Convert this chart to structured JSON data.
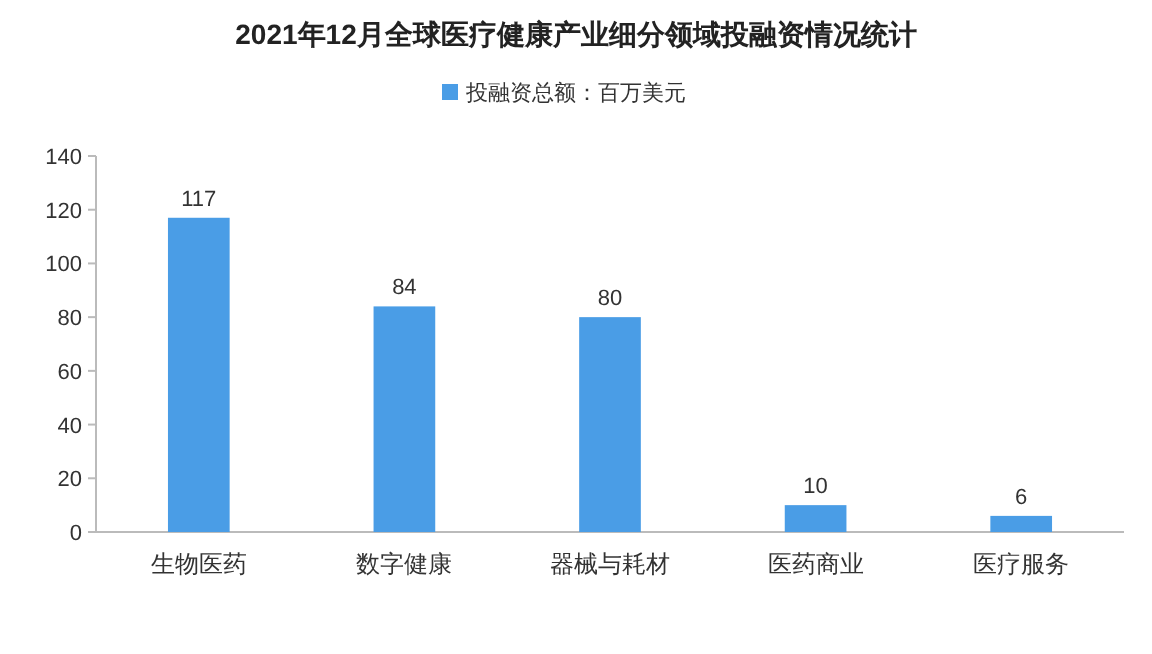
{
  "chart_data": {
    "type": "bar",
    "title": "2021年12月全球医疗健康产业细分领域投融资情况统计",
    "categories": [
      "生物医药",
      "数字健康",
      "器械与耗材",
      "医药商业",
      "医疗服务"
    ],
    "series": [
      {
        "name": "投融资总额：百万美元",
        "color": "#4a9de6",
        "values": [
          117,
          84,
          80,
          10,
          6
        ]
      }
    ],
    "ylim": [
      0,
      140
    ],
    "yticks": [
      0,
      20,
      40,
      60,
      80,
      100,
      120,
      140
    ],
    "data_labels": true,
    "legend": "top"
  }
}
